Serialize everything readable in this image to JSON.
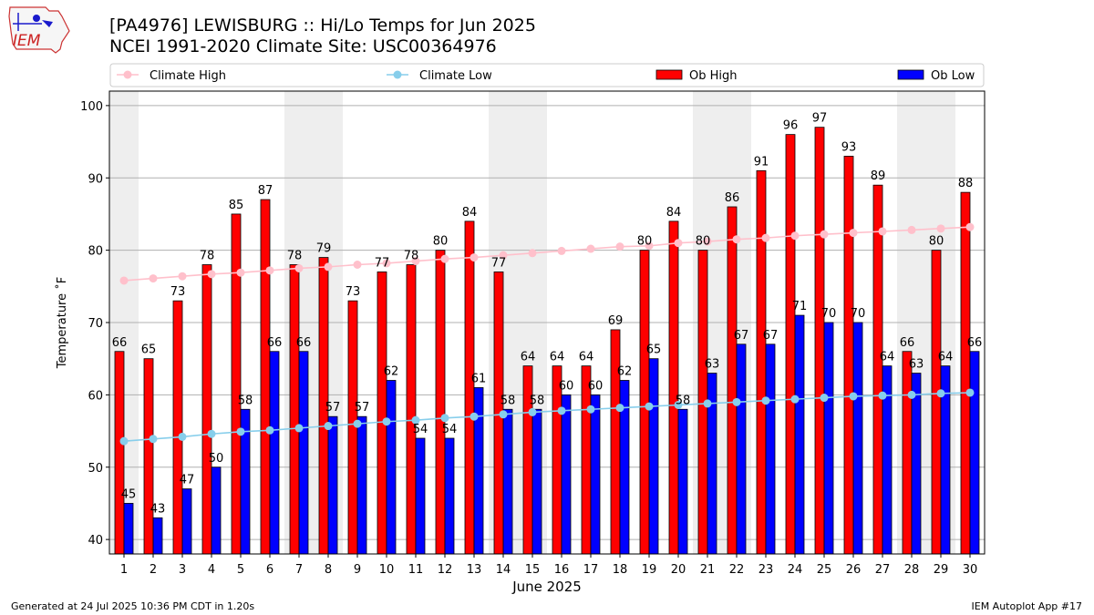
{
  "header": {
    "title_line1": "[PA4976] LEWISBURG :: Hi/Lo Temps for Jun 2025",
    "title_line2": "NCEI 1991-2020 Climate Site: USC00364976",
    "logo_text": "IEM"
  },
  "footer": {
    "generated": "Generated at 24 Jul 2025 10:36 PM CDT in 1.20s",
    "app": "IEM Autoplot App #17"
  },
  "colors": {
    "ob_high": "#ff0000",
    "ob_low": "#0000ff",
    "climate_high": "#ffc0cb",
    "climate_low": "#87ceeb",
    "weekend_band": "#eeeeee",
    "grid": "#b0b0b0"
  },
  "chart_data": {
    "type": "bar",
    "xlabel": "June 2025",
    "ylabel": "Temperature ˚F",
    "ylim": [
      38,
      102
    ],
    "yticks": [
      40,
      50,
      60,
      70,
      80,
      90,
      100
    ],
    "grid": "horizontal",
    "legend_placement": "top",
    "categories": [
      "1",
      "2",
      "3",
      "4",
      "5",
      "6",
      "7",
      "8",
      "9",
      "10",
      "11",
      "12",
      "13",
      "14",
      "15",
      "16",
      "17",
      "18",
      "19",
      "20",
      "21",
      "22",
      "23",
      "24",
      "25",
      "26",
      "27",
      "28",
      "29",
      "30"
    ],
    "weekend_bands": [
      [
        1,
        1
      ],
      [
        7,
        8
      ],
      [
        14,
        15
      ],
      [
        21,
        22
      ],
      [
        28,
        29
      ]
    ],
    "series": [
      {
        "name": "Climate High",
        "kind": "line",
        "values": [
          75.8,
          76.1,
          76.4,
          76.7,
          76.9,
          77.2,
          77.5,
          77.7,
          78.0,
          78.2,
          78.5,
          78.8,
          79.0,
          79.3,
          79.6,
          79.9,
          80.2,
          80.5,
          80.6,
          81.0,
          81.2,
          81.5,
          81.7,
          82.0,
          82.2,
          82.4,
          82.6,
          82.8,
          83.0,
          83.2
        ]
      },
      {
        "name": "Climate Low",
        "kind": "line",
        "values": [
          53.6,
          53.9,
          54.2,
          54.6,
          54.9,
          55.1,
          55.4,
          55.7,
          56.0,
          56.3,
          56.5,
          56.8,
          57.0,
          57.3,
          57.6,
          57.8,
          58.0,
          58.2,
          58.4,
          58.6,
          58.8,
          59.0,
          59.2,
          59.4,
          59.6,
          59.8,
          59.9,
          60.0,
          60.2,
          60.3
        ]
      },
      {
        "name": "Ob High",
        "kind": "bar",
        "values": [
          66,
          65,
          73,
          78,
          85,
          87,
          78,
          79,
          73,
          77,
          78,
          80,
          84,
          77,
          64,
          64,
          64,
          69,
          80,
          84,
          80,
          86,
          91,
          96,
          97,
          93,
          89,
          66,
          80,
          88
        ]
      },
      {
        "name": "Ob Low",
        "kind": "bar",
        "values": [
          45,
          43,
          47,
          50,
          58,
          66,
          66,
          57,
          57,
          62,
          54,
          54,
          61,
          58,
          58,
          60,
          60,
          62,
          65,
          58,
          63,
          67,
          67,
          71,
          70,
          70,
          64,
          63,
          64,
          66
        ]
      }
    ]
  }
}
